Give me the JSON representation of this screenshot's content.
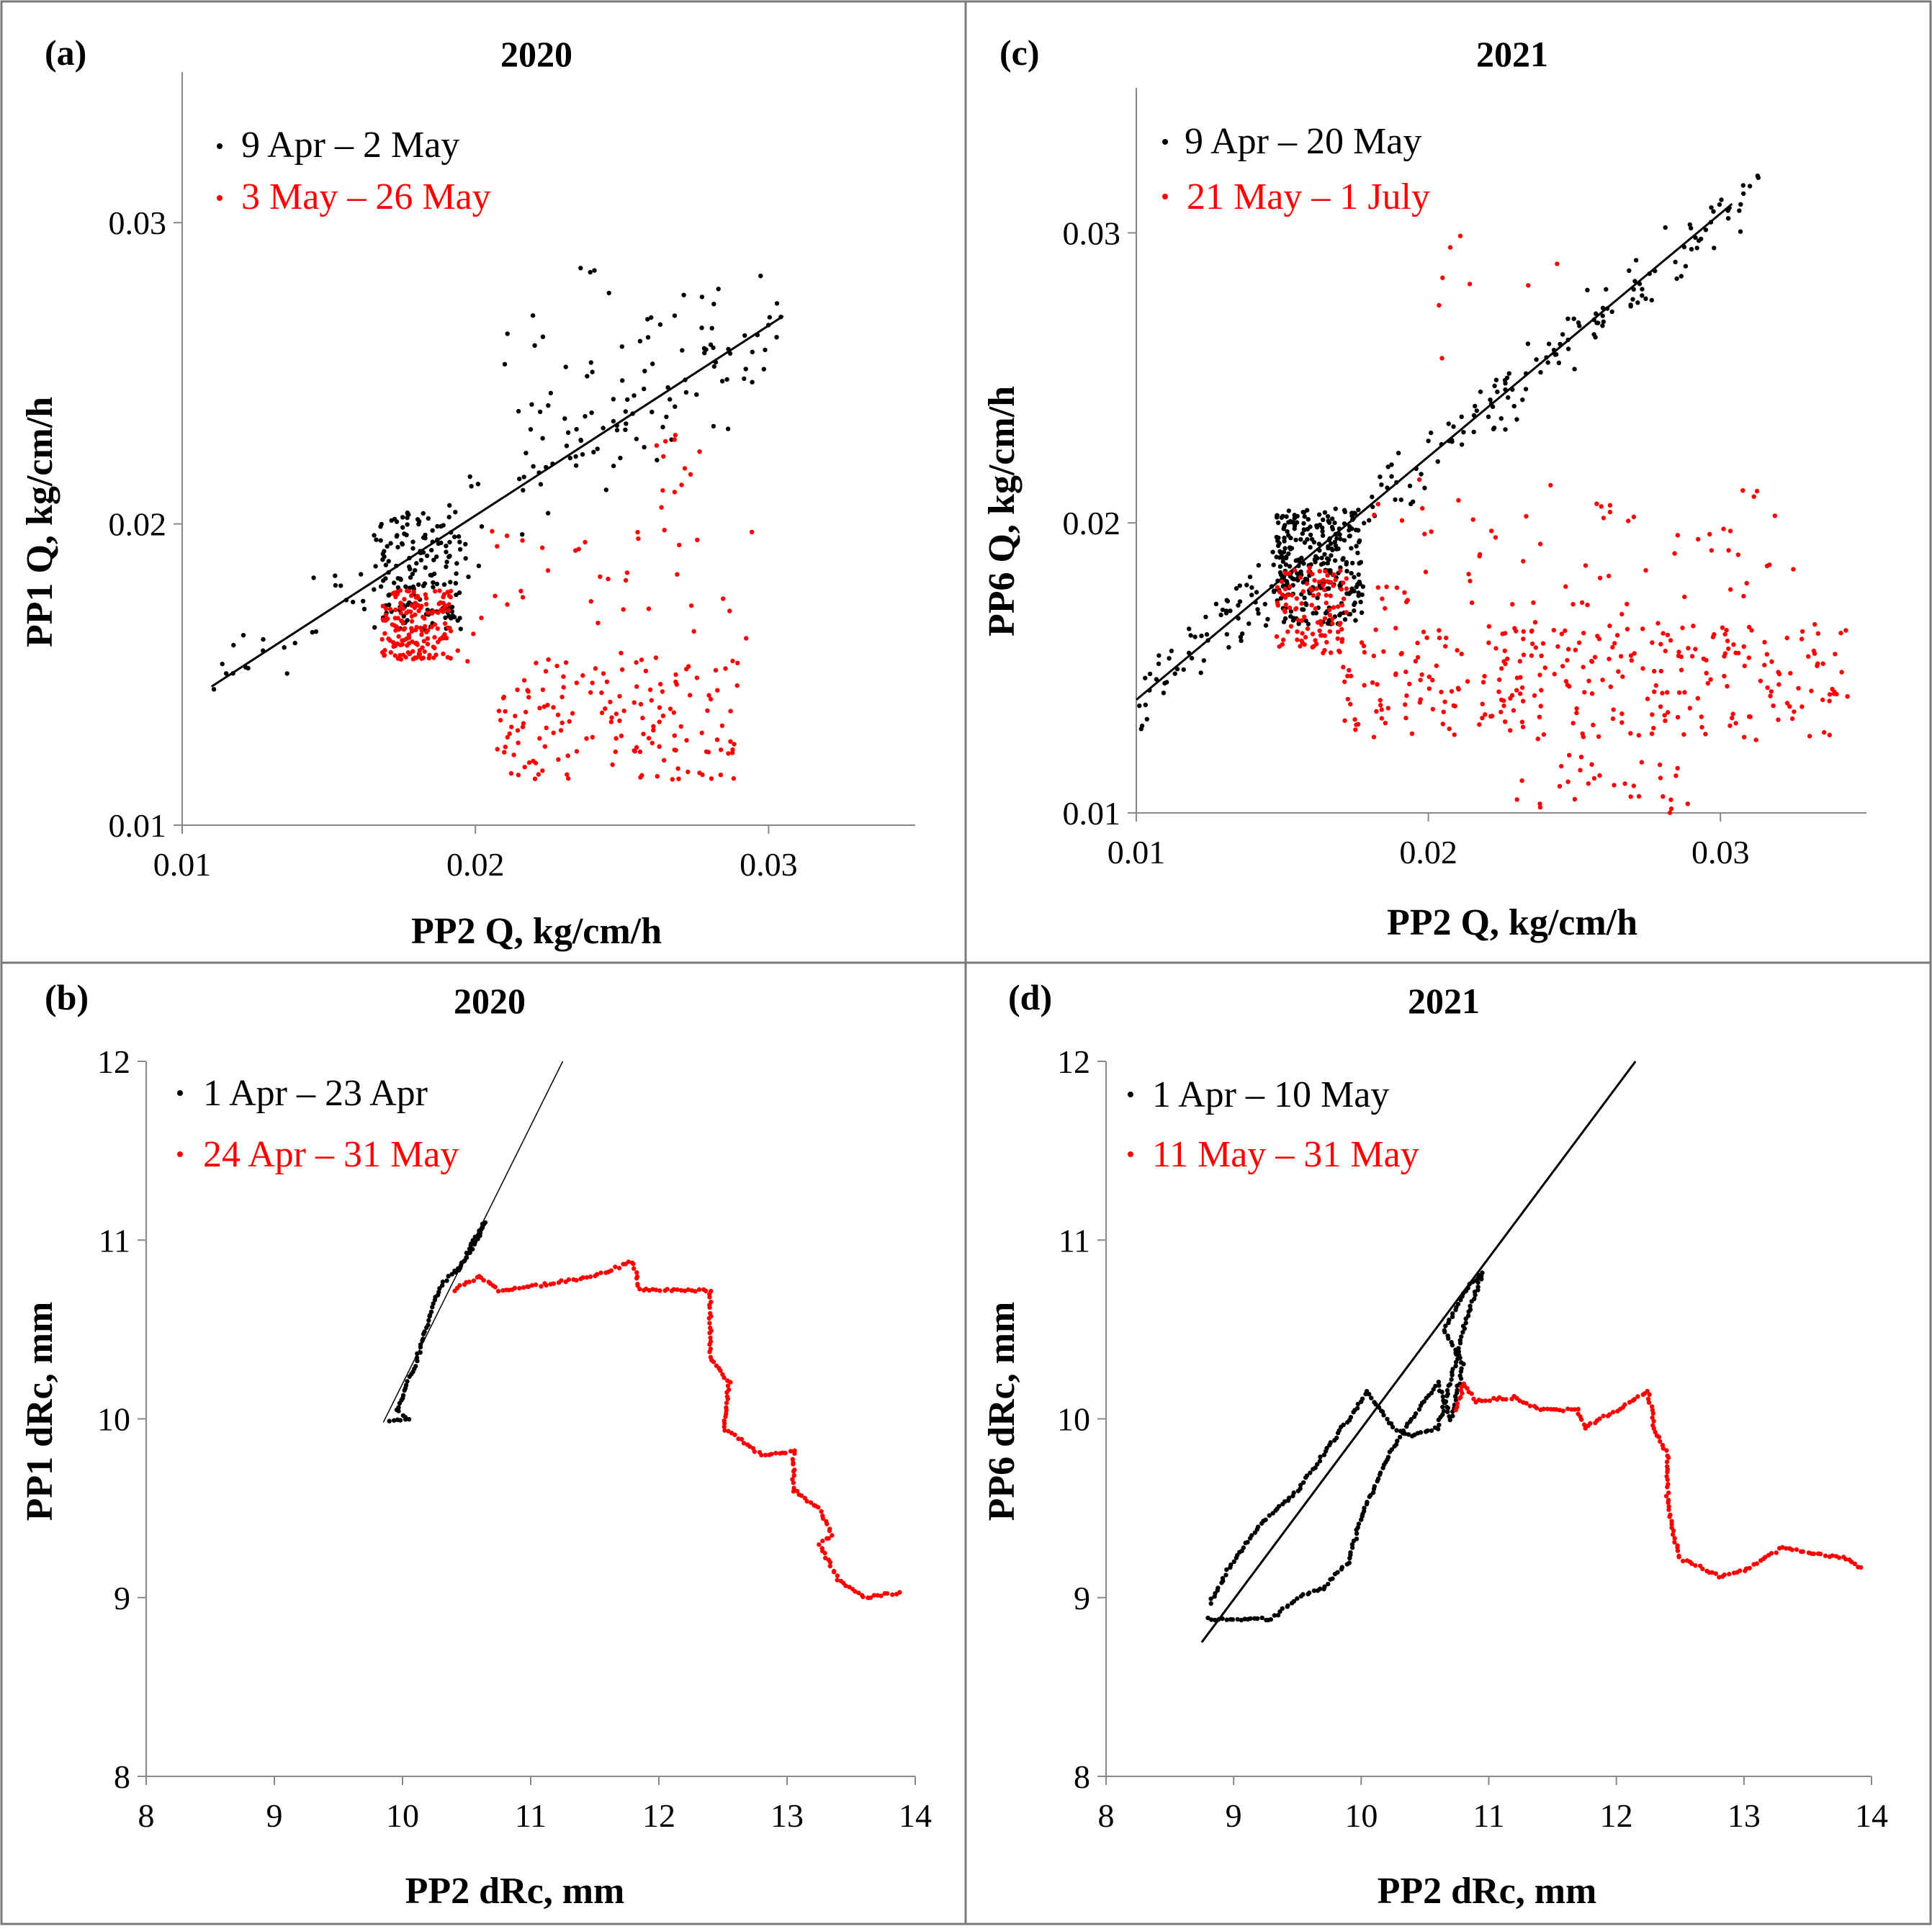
{
  "chart_data": [
    {
      "id": "a",
      "type": "scatter",
      "panel_label": "(a)",
      "title": "2020",
      "xlabel": "PP2 Q, kg/cm/h",
      "ylabel": "PP1 Q, kg/cm/h",
      "xlim": [
        0.01,
        0.035
      ],
      "ylim": [
        0.01,
        0.035
      ],
      "xticks": [
        0.01,
        0.02,
        0.03
      ],
      "yticks": [
        0.01,
        0.02,
        0.03
      ],
      "tick_labels": [
        "0.01",
        "0.02",
        "0.03"
      ],
      "legend_position": "top-left",
      "series": [
        {
          "name": "9 Apr – 2 May",
          "color": "#000000",
          "description": "black points scattered around fit line"
        },
        {
          "name": "3 May – 26 May",
          "color": "#ff0000",
          "description": "red points below fit line"
        }
      ],
      "fit_line": {
        "x": [
          0.011,
          0.0305
        ],
        "y": [
          0.0146,
          0.0269
        ]
      },
      "clusters": [
        {
          "series": 0,
          "n": 150,
          "x": [
            0.0165,
            0.0195
          ],
          "y": [
            0.0165,
            0.0205
          ]
        },
        {
          "series": 0,
          "n": 120,
          "x": [
            0.011,
            0.0305
          ],
          "y": "fit",
          "spread": 0.0022
        },
        {
          "series": 0,
          "n": 40,
          "x": [
            0.021,
            0.029
          ],
          "y": [
            0.022,
            0.0285
          ]
        },
        {
          "series": 1,
          "n": 170,
          "x": [
            0.0168,
            0.0192
          ],
          "y": [
            0.0155,
            0.0178
          ]
        },
        {
          "series": 1,
          "n": 150,
          "x": [
            0.0205,
            0.029
          ],
          "y": [
            0.0115,
            0.0155
          ]
        },
        {
          "series": 1,
          "n": 45,
          "x": [
            0.019,
            0.0295
          ],
          "y": [
            0.015,
            0.0198
          ]
        },
        {
          "series": 1,
          "n": 12,
          "x": [
            0.026,
            0.028
          ],
          "y": [
            0.0205,
            0.023
          ]
        }
      ]
    },
    {
      "id": "b",
      "type": "scatter",
      "panel_label": "(b)",
      "title": "2020",
      "xlabel": "PP2 dRc, mm",
      "ylabel": "PP1 dRc, mm",
      "xlim": [
        8,
        14
      ],
      "ylim": [
        8,
        12
      ],
      "xticks": [
        8,
        9,
        10,
        11,
        12,
        13,
        14
      ],
      "yticks": [
        8,
        9,
        10,
        11,
        12
      ],
      "tick_labels_x": [
        "8",
        "9",
        "10",
        "11",
        "12",
        "13",
        "14"
      ],
      "tick_labels_y": [
        "8",
        "9",
        "10",
        "11",
        "12"
      ],
      "legend_position": "top-left",
      "series": [
        {
          "name": "1 Apr – 23 Apr",
          "color": "#000000",
          "path": [
            [
              9.9,
              9.98
            ],
            [
              10.05,
              10.0
            ],
            [
              9.95,
              10.05
            ],
            [
              10.1,
              10.3
            ],
            [
              10.2,
              10.55
            ],
            [
              10.3,
              10.75
            ],
            [
              10.45,
              10.85
            ],
            [
              10.55,
              11.0
            ],
            [
              10.65,
              11.1
            ],
            [
              10.5,
              10.9
            ],
            [
              10.4,
              10.8
            ]
          ]
        },
        {
          "name": "24 Apr – 31 May",
          "color": "#ff0000",
          "path": [
            [
              10.4,
              10.72
            ],
            [
              10.6,
              10.8
            ],
            [
              10.75,
              10.72
            ],
            [
              11.1,
              10.75
            ],
            [
              11.5,
              10.8
            ],
            [
              11.8,
              10.88
            ],
            [
              11.85,
              10.72
            ],
            [
              12.4,
              10.72
            ],
            [
              12.4,
              10.35
            ],
            [
              12.55,
              10.2
            ],
            [
              12.5,
              9.95
            ],
            [
              12.8,
              9.8
            ],
            [
              13.05,
              9.82
            ],
            [
              13.05,
              9.6
            ],
            [
              13.25,
              9.5
            ],
            [
              13.35,
              9.35
            ],
            [
              13.25,
              9.3
            ],
            [
              13.4,
              9.1
            ],
            [
              13.6,
              9.0
            ],
            [
              13.9,
              9.03
            ]
          ]
        }
      ],
      "fit_line": {
        "x": [
          9.85,
          11.25
        ],
        "y": [
          9.98,
          12.0
        ]
      }
    },
    {
      "id": "c",
      "type": "scatter",
      "panel_label": "(c)",
      "title": "2021",
      "xlabel": "PP2 Q, kg/cm/h",
      "ylabel": "PP6 Q, kg/cm/h",
      "xlim": [
        0.01,
        0.035
      ],
      "ylim": [
        0.01,
        0.035
      ],
      "xticks": [
        0.01,
        0.02,
        0.03
      ],
      "yticks": [
        0.01,
        0.02,
        0.03
      ],
      "tick_labels": [
        "0.01",
        "0.02",
        "0.03"
      ],
      "legend_position": "top-left",
      "series": [
        {
          "name": "9 Apr – 20 May",
          "color": "#000000",
          "description": "black points along fit line"
        },
        {
          "name": "21 May – 1 July",
          "color": "#ff0000",
          "description": "red points spread below fit line"
        }
      ],
      "fit_line": {
        "x": [
          0.01,
          0.0304
        ],
        "y": [
          0.0139,
          0.031
        ]
      },
      "clusters": [
        {
          "series": 0,
          "n": 260,
          "x": [
            0.0148,
            0.0178
          ],
          "y": [
            0.0165,
            0.0205
          ]
        },
        {
          "series": 0,
          "n": 230,
          "x": [
            0.01,
            0.0315
          ],
          "y": "fit",
          "spread": 0.0014
        },
        {
          "series": 1,
          "n": 110,
          "x": [
            0.0148,
            0.0172
          ],
          "y": [
            0.0155,
            0.0185
          ]
        },
        {
          "series": 1,
          "n": 300,
          "x": [
            0.017,
            0.0345
          ],
          "y": [
            0.0125,
            0.0165
          ]
        },
        {
          "series": 1,
          "n": 70,
          "x": [
            0.018,
            0.0325
          ],
          "y": [
            0.0165,
            0.0215
          ]
        },
        {
          "series": 1,
          "n": 30,
          "x": [
            0.023,
            0.029
          ],
          "y": [
            0.01,
            0.012
          ]
        },
        {
          "series": 1,
          "n": 8,
          "x": [
            0.0195,
            0.0245
          ],
          "y": [
            0.025,
            0.0305
          ]
        }
      ]
    },
    {
      "id": "d",
      "type": "scatter",
      "panel_label": "(d)",
      "title": "2021",
      "xlabel": "PP2 dRc, mm",
      "ylabel": "PP6 dRc, mm",
      "xlim": [
        8,
        14
      ],
      "ylim": [
        8,
        12
      ],
      "xticks": [
        8,
        9,
        10,
        11,
        12,
        13,
        14
      ],
      "yticks": [
        8,
        9,
        10,
        11,
        12
      ],
      "tick_labels_x": [
        "8",
        "9",
        "10",
        "11",
        "12",
        "13",
        "14"
      ],
      "tick_labels_y": [
        "8",
        "9",
        "10",
        "11",
        "12"
      ],
      "legend_position": "top-left",
      "series": [
        {
          "name": "1 Apr – 10 May",
          "color": "#000000",
          "path": [
            [
              8.8,
              8.88
            ],
            [
              9.0,
              8.88
            ],
            [
              9.3,
              8.88
            ],
            [
              9.5,
              9.0
            ],
            [
              9.7,
              9.05
            ],
            [
              9.9,
              9.2
            ],
            [
              10.0,
              9.45
            ],
            [
              10.15,
              9.7
            ],
            [
              10.3,
              9.9
            ],
            [
              10.45,
              10.05
            ],
            [
              10.6,
              10.2
            ],
            [
              10.7,
              10.0
            ],
            [
              10.8,
              10.3
            ],
            [
              10.65,
              10.5
            ],
            [
              10.85,
              10.75
            ],
            [
              10.95,
              10.82
            ],
            [
              10.8,
              10.5
            ],
            [
              10.7,
              10.2
            ],
            [
              10.6,
              9.95
            ],
            [
              10.4,
              9.9
            ],
            [
              10.25,
              9.95
            ],
            [
              10.05,
              10.15
            ],
            [
              9.8,
              9.9
            ],
            [
              9.5,
              9.6
            ],
            [
              9.2,
              9.4
            ],
            [
              8.95,
              9.15
            ],
            [
              8.8,
              8.95
            ]
          ]
        },
        {
          "name": "11 May – 31 May",
          "color": "#ff0000",
          "path": [
            [
              10.75,
              10.05
            ],
            [
              10.8,
              10.2
            ],
            [
              10.9,
              10.1
            ],
            [
              11.2,
              10.12
            ],
            [
              11.4,
              10.05
            ],
            [
              11.7,
              10.05
            ],
            [
              11.75,
              9.95
            ],
            [
              12.0,
              10.05
            ],
            [
              12.25,
              10.15
            ],
            [
              12.3,
              9.95
            ],
            [
              12.4,
              9.8
            ],
            [
              12.4,
              9.55
            ],
            [
              12.45,
              9.35
            ],
            [
              12.5,
              9.22
            ],
            [
              12.8,
              9.12
            ],
            [
              13.0,
              9.15
            ],
            [
              13.3,
              9.28
            ],
            [
              13.5,
              9.25
            ],
            [
              13.8,
              9.22
            ],
            [
              13.95,
              9.15
            ]
          ]
        }
      ],
      "fit_line": {
        "x": [
          8.75,
          12.15
        ],
        "y": [
          8.75,
          12.0
        ]
      }
    }
  ]
}
